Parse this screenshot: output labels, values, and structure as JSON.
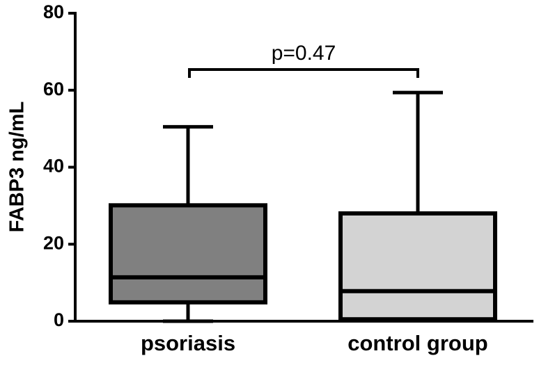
{
  "chart_data": {
    "type": "box",
    "y_label": "FABP3 ng/mL",
    "categories": [
      "psoriasis",
      "control group"
    ],
    "colors": [
      "#808080",
      "#d3d3d3"
    ],
    "min": [
      0,
      0.3
    ],
    "q1": [
      4.9,
      0.5
    ],
    "median": [
      11.4,
      7.8
    ],
    "q3": [
      30.1,
      28.0
    ],
    "max": [
      50.5,
      59.4
    ],
    "ylim": [
      0,
      80
    ],
    "yticks": [
      0,
      20,
      40,
      60,
      80
    ],
    "annotation": "p=0.47"
  }
}
